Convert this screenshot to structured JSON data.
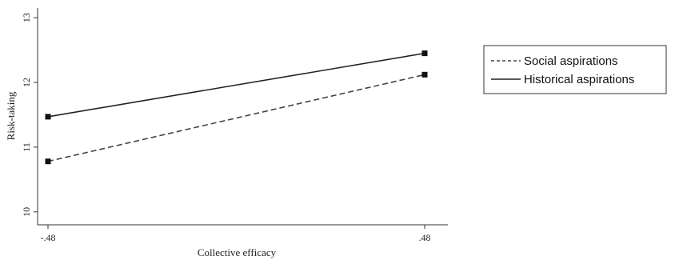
{
  "chart_data": {
    "type": "line",
    "title": "",
    "xlabel": "Collective efficacy",
    "ylabel": "Risk-taking",
    "x": [
      -0.48,
      0.48
    ],
    "x_tick_labels": [
      "-.48",
      ".48"
    ],
    "y_ticks": [
      10,
      11,
      12,
      13
    ],
    "y_tick_labels": [
      "10",
      "11",
      "12",
      "13"
    ],
    "xlim": [
      -0.48,
      0.48
    ],
    "ylim": [
      9.8,
      13.15
    ],
    "grid": false,
    "legend_position": "right",
    "series": [
      {
        "name": "Social aspirations",
        "values": [
          10.78,
          12.12
        ],
        "style": "dashed",
        "color": "#444444"
      },
      {
        "name": "Historical aspirations",
        "values": [
          11.47,
          12.45
        ],
        "style": "solid",
        "color": "#222222"
      }
    ]
  }
}
